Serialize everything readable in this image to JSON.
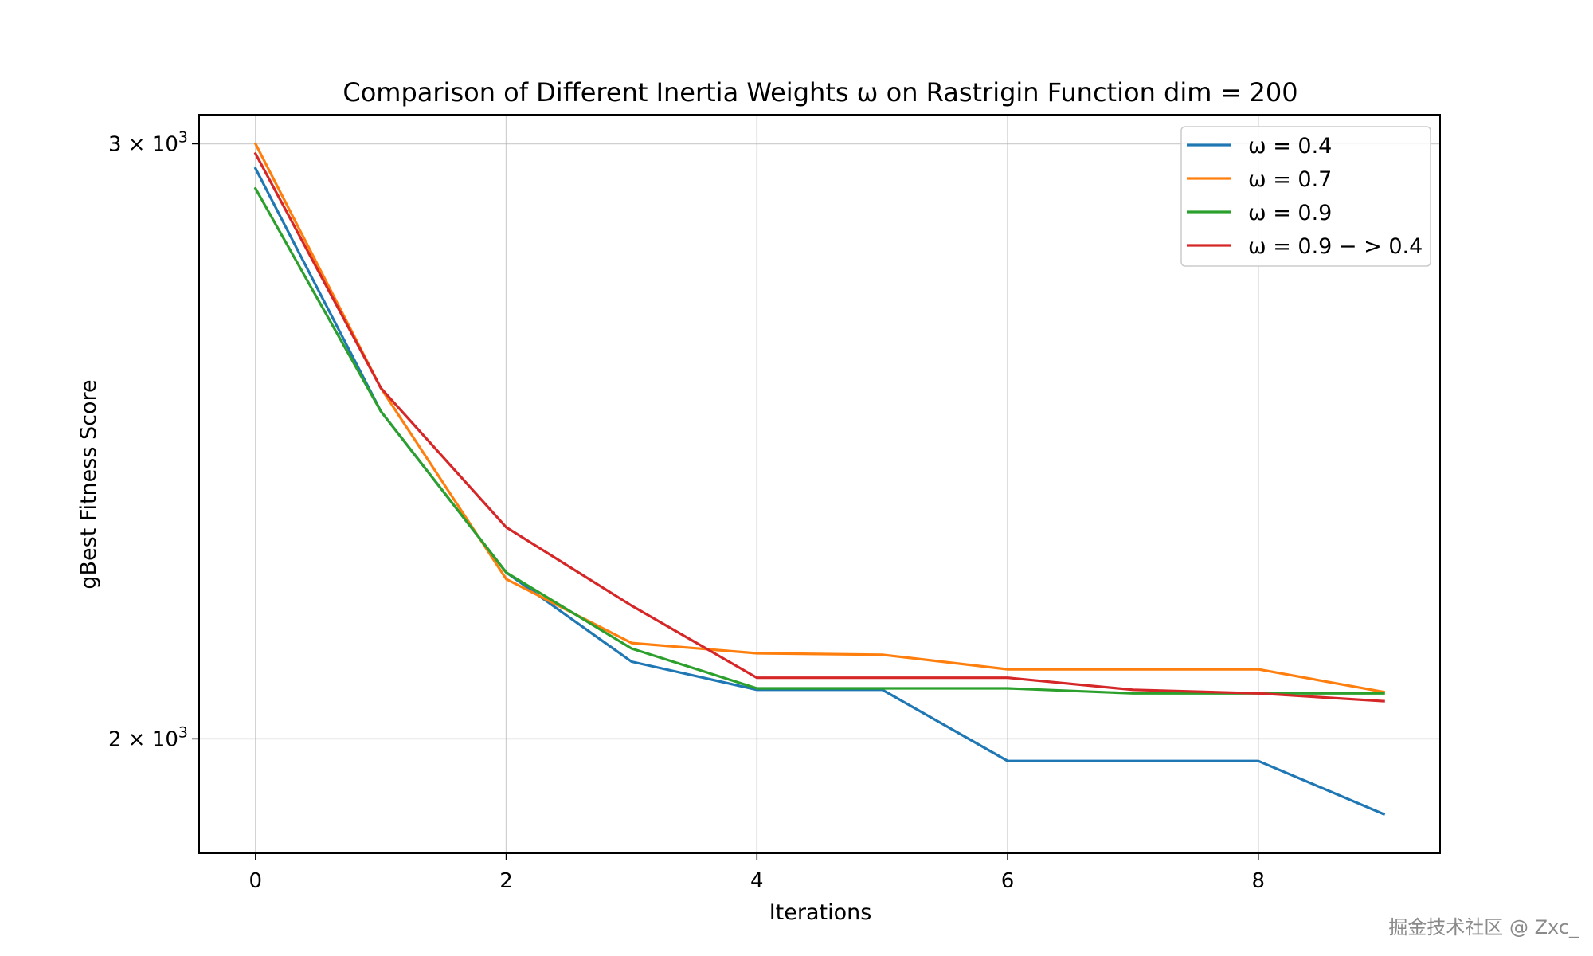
{
  "chart_data": {
    "type": "line",
    "title": "Comparison of Different Inertia Weights ω on Rastrigin Function dim = 200",
    "xlabel": "Iterations",
    "ylabel": "gBest Fitness Score",
    "y_scale": "log",
    "xlim": [
      -0.45,
      9.45
    ],
    "ylim": [
      1850,
      3060
    ],
    "x_ticks": [
      0,
      2,
      4,
      6,
      8
    ],
    "x_tick_labels": [
      "0",
      "2",
      "4",
      "6",
      "8"
    ],
    "y_ticks": [
      {
        "value": 3000,
        "mantissa": "3",
        "label": "3 × 10",
        "exponent": "3"
      },
      {
        "value": 2000,
        "mantissa": "2",
        "label": "2 × 10",
        "exponent": "3"
      }
    ],
    "grid": true,
    "legend_position": "top-right",
    "x": [
      0,
      1,
      2,
      3,
      4,
      5,
      6,
      7,
      8,
      9
    ],
    "series": [
      {
        "name": "ω = 0.4",
        "color": "#1f77b4",
        "values": [
          2950,
          2500,
          2240,
          2108,
          2068,
          2068,
          1970,
          1970,
          1970,
          1900
        ]
      },
      {
        "name": "ω = 0.7",
        "color": "#ff7f0e",
        "values": [
          3000,
          2540,
          2230,
          2135,
          2120,
          2118,
          2097,
          2097,
          2097,
          2065
        ]
      },
      {
        "name": "ω = 0.9",
        "color": "#2ca02c",
        "values": [
          2910,
          2500,
          2240,
          2127,
          2070,
          2070,
          2070,
          2063,
          2063,
          2063
        ]
      },
      {
        "name": "ω = 0.9 − > 0.4",
        "color": "#d62728",
        "values": [
          2980,
          2540,
          2310,
          2190,
          2085,
          2085,
          2085,
          2068,
          2063,
          2052
        ]
      }
    ]
  },
  "watermark": "掘金技术社区 @ Zxc_"
}
